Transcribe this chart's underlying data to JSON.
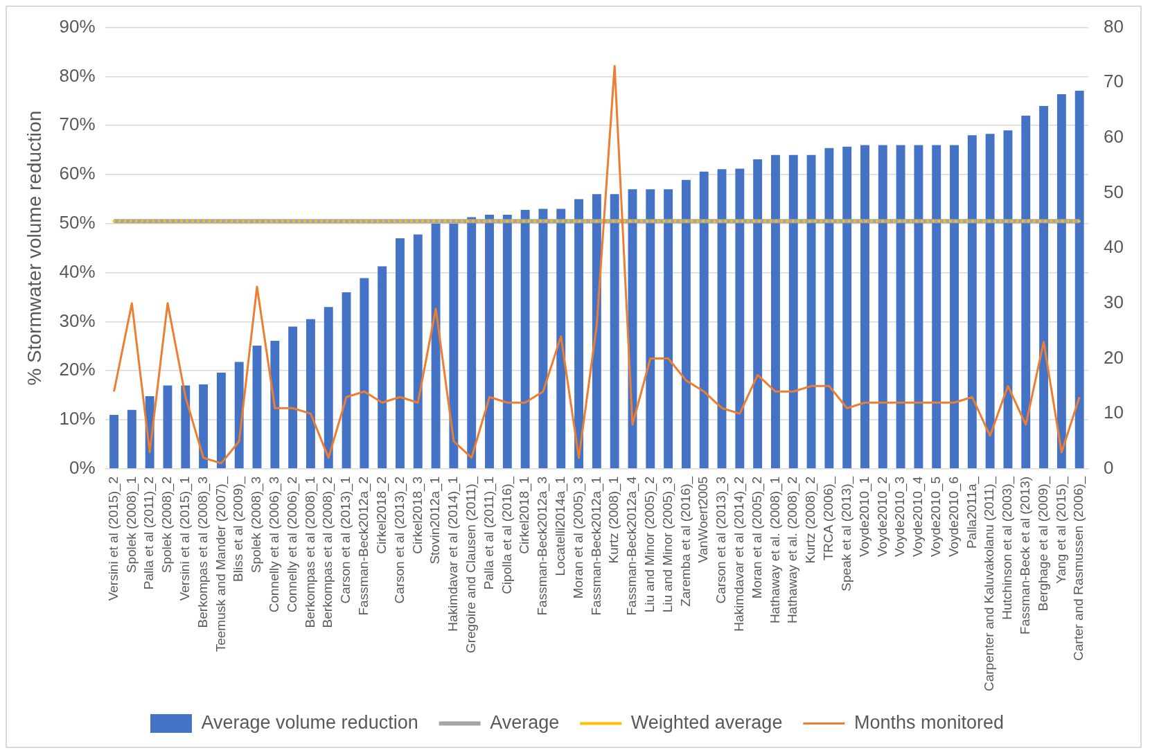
{
  "chart_data": {
    "type": "bar",
    "ylabel": "% Stormwater volume reduction",
    "categories": [
      "Versini et al (2015)_2",
      "Spolek (2008)_1",
      "Palla et al (2011)_2",
      "Spolek (2008)_2",
      "Versini et al (2015)_1",
      "Berkompas et al (2008)_3",
      "Teemusk and Mander (2007)_",
      "Bliss et al (2009)_",
      "Spolek (2008)_3",
      "Connelly et al (2006)_3",
      "Connelly et al (2006)_2",
      "Berkompas et al (2008)_1",
      "Berkompas et al (2008)_2",
      "Carson et al (2013)_1",
      "Fassman-Beck2012a_2",
      "Cirkel2018_2",
      "Carson et al (2013)_2",
      "Cirkel2018_3",
      "Stovin2012a_1",
      "Hakimdavar et al (2014)_1",
      "Gregoire and Clausen (2011)_",
      "Palla et al (2011)_1",
      "Cipolla et al (2016)_",
      "Cirkel2018_1",
      "Fassman-Beck2012a_3",
      "Locatelli2014a_1",
      "Moran et al (2005)_3",
      "Fassman-Beck2012a_1",
      "Kurtz (2008)_1",
      "Fassman-Beck2012a_4",
      "Liu and Minor (2005)_2",
      "Liu and Minor (2005)_3",
      "Zaremba et al (2016)_",
      "VanWoert2005",
      "Carson et al (2013)_3",
      "Hakimdavar et al (2014)_2",
      "Moran et al (2005)_2",
      "Hathaway et al. (2008)_1",
      "Hathaway et al. (2008)_2",
      "Kurtz (2008)_2",
      "TRCA (2006)_",
      "Speak et al (2013)_",
      "Voyde2010_1",
      "Voyde2010_2",
      "Voyde2010_3",
      "Voyde2010_4",
      "Voyde2010_5",
      "Voyde2010_6",
      "Palla2011a_",
      "Carpenter and Kaluvakolanu (2011)_",
      "Hutchinson et al (2003)_",
      "Fassman-Beck et al (2013)",
      "Berghage et al (2009)_",
      "Yang et al (2015)_",
      "Carter and Rasmussen (2006)_"
    ],
    "series": [
      {
        "name": "Average volume reduction",
        "color": "#4472c4",
        "values": [
          11,
          12,
          14.8,
          17,
          17,
          17.2,
          19.6,
          21.8,
          25.1,
          26.1,
          29,
          30.5,
          33,
          36,
          38.9,
          41.3,
          47,
          47.8,
          50,
          50,
          51.3,
          51.8,
          51.8,
          52.8,
          53,
          53,
          55,
          56,
          56,
          57,
          57,
          57,
          58.9,
          60.6,
          61.1,
          61.2,
          63.1,
          64,
          64,
          64,
          65.4,
          65.7,
          66,
          66,
          66,
          66,
          66,
          66,
          68,
          68.3,
          69,
          72,
          74,
          76.4,
          77.1
        ]
      },
      {
        "name": "Average",
        "type": "line",
        "color": "#a5a5a5",
        "line_style": "solid",
        "values": [
          50.5,
          50.5,
          50.5,
          50.5,
          50.5,
          50.5,
          50.5,
          50.5,
          50.5,
          50.5,
          50.5,
          50.5,
          50.5,
          50.5,
          50.5,
          50.5,
          50.5,
          50.5,
          50.5,
          50.5,
          50.5,
          50.5,
          50.5,
          50.5,
          50.5,
          50.5,
          50.5,
          50.5,
          50.5,
          50.5,
          50.5,
          50.5,
          50.5,
          50.5,
          50.5,
          50.5,
          50.5,
          50.5,
          50.5,
          50.5,
          50.5,
          50.5,
          50.5,
          50.5,
          50.5,
          50.5,
          50.5,
          50.5,
          50.5,
          50.5,
          50.5,
          50.5,
          50.5,
          50.5,
          50.5
        ]
      },
      {
        "name": "Weighted average",
        "type": "line",
        "color": "#ffc000",
        "line_style": "dotted",
        "values": [
          50.5,
          50.5,
          50.5,
          50.5,
          50.5,
          50.5,
          50.5,
          50.5,
          50.5,
          50.5,
          50.5,
          50.5,
          50.5,
          50.5,
          50.5,
          50.5,
          50.5,
          50.5,
          50.5,
          50.5,
          50.5,
          50.5,
          50.5,
          50.5,
          50.5,
          50.5,
          50.5,
          50.5,
          50.5,
          50.5,
          50.5,
          50.5,
          50.5,
          50.5,
          50.5,
          50.5,
          50.5,
          50.5,
          50.5,
          50.5,
          50.5,
          50.5,
          50.5,
          50.5,
          50.5,
          50.5,
          50.5,
          50.5,
          50.5,
          50.5,
          50.5,
          50.5,
          50.5,
          50.5,
          50.5
        ]
      },
      {
        "name": "Months monitored",
        "type": "line",
        "axis": "y2",
        "color": "#ed7d31",
        "line_style": "solid",
        "values": [
          14,
          30,
          3,
          30,
          13,
          2,
          1,
          5,
          33,
          11,
          11,
          10,
          2,
          13,
          14,
          12,
          13,
          12,
          29,
          5,
          2,
          13,
          12,
          12,
          14,
          24,
          2,
          26,
          73,
          8,
          20,
          20,
          16,
          14,
          11,
          10,
          17,
          14,
          14,
          15,
          15,
          11,
          12,
          12,
          12,
          12,
          12,
          12,
          13,
          6,
          15,
          8,
          23,
          3,
          13
        ]
      }
    ],
    "ylim": [
      0,
      90
    ],
    "yticks": [
      {
        "value": 0,
        "label": "0%"
      },
      {
        "value": 10,
        "label": "10%"
      },
      {
        "value": 20,
        "label": "20%"
      },
      {
        "value": 30,
        "label": "30%"
      },
      {
        "value": 40,
        "label": "40%"
      },
      {
        "value": 50,
        "label": "50%"
      },
      {
        "value": 60,
        "label": "60%"
      },
      {
        "value": 70,
        "label": "70%"
      },
      {
        "value": 80,
        "label": "80%"
      },
      {
        "value": 90,
        "label": "90%"
      }
    ],
    "y2lim": [
      0,
      80
    ],
    "y2ticks": [
      0,
      10,
      20,
      30,
      40,
      50,
      60,
      70,
      80
    ],
    "grid": "y",
    "legend": "bottom",
    "marker": "none"
  }
}
